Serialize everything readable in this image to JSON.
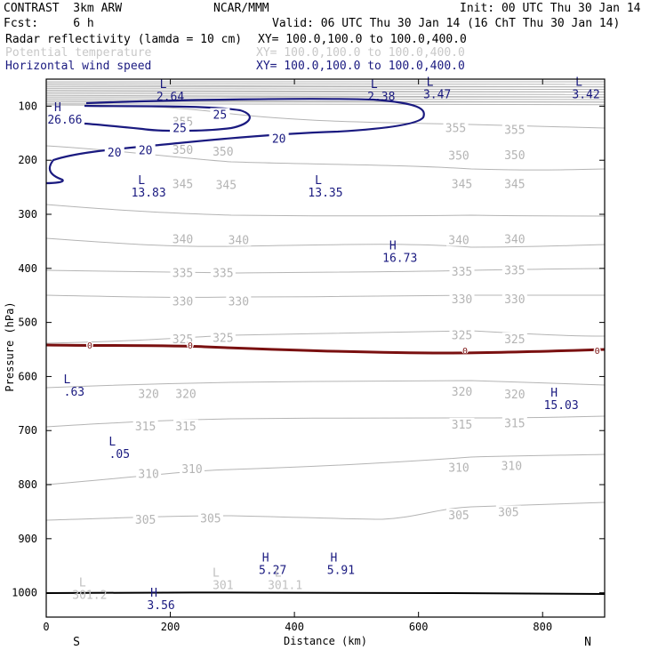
{
  "header": {
    "left1": "CONTRAST  3km ARW",
    "center1": "NCAR/MMM",
    "right1": "Init: 00 UTC Thu 30 Jan 14",
    "left2": "Fcst:     6 h",
    "right2": "Valid: 06 UTC Thu 30 Jan 14 (16 ChT Thu 30 Jan 14)"
  },
  "fields": [
    {
      "name": "Radar reflectivity (lamda = 10 cm)",
      "xy": "XY= 100.0,100.0 to 100.0,400.0",
      "color": "#000000"
    },
    {
      "name": "Potential temperature",
      "xy": "XY= 100.0,100.0 to 100.0,400.0",
      "color": "#c8c8c8"
    },
    {
      "name": "Horizontal wind speed",
      "xy": "XY= 100.0,100.0 to 100.0,400.0",
      "color": "#1a1a80"
    }
  ],
  "chart_data": {
    "type": "cross-section",
    "xlabel": "Distance (km)",
    "ylabel": "Pressure (hPa)",
    "xlim": [
      0,
      900
    ],
    "ylim": [
      1045,
      50
    ],
    "xticks": [
      0,
      200,
      400,
      600,
      800
    ],
    "yticks": [
      100,
      200,
      300,
      400,
      500,
      600,
      700,
      800,
      900,
      1000
    ],
    "x_end_labels": [
      "S",
      "N"
    ],
    "theta_labels": [
      {
        "v": "355",
        "x": 220,
        "p": 128
      },
      {
        "v": "355",
        "x": 660,
        "p": 140
      },
      {
        "v": "355",
        "x": 755,
        "p": 143
      },
      {
        "v": "350",
        "x": 220,
        "p": 180
      },
      {
        "v": "350",
        "x": 285,
        "p": 183
      },
      {
        "v": "350",
        "x": 665,
        "p": 191
      },
      {
        "v": "350",
        "x": 755,
        "p": 190
      },
      {
        "v": "345",
        "x": 220,
        "p": 243
      },
      {
        "v": "345",
        "x": 290,
        "p": 245
      },
      {
        "v": "345",
        "x": 670,
        "p": 243
      },
      {
        "v": "345",
        "x": 755,
        "p": 243
      },
      {
        "v": "340",
        "x": 220,
        "p": 345
      },
      {
        "v": "340",
        "x": 310,
        "p": 347
      },
      {
        "v": "340",
        "x": 665,
        "p": 347
      },
      {
        "v": "340",
        "x": 755,
        "p": 345
      },
      {
        "v": "335",
        "x": 220,
        "p": 408
      },
      {
        "v": "335",
        "x": 285,
        "p": 408
      },
      {
        "v": "335",
        "x": 670,
        "p": 405
      },
      {
        "v": "335",
        "x": 755,
        "p": 403
      },
      {
        "v": "330",
        "x": 220,
        "p": 460
      },
      {
        "v": "330",
        "x": 310,
        "p": 460
      },
      {
        "v": "330",
        "x": 670,
        "p": 456
      },
      {
        "v": "330",
        "x": 755,
        "p": 456
      },
      {
        "v": "325",
        "x": 220,
        "p": 530
      },
      {
        "v": "325",
        "x": 285,
        "p": 528
      },
      {
        "v": "325",
        "x": 670,
        "p": 523
      },
      {
        "v": "325",
        "x": 755,
        "p": 530
      },
      {
        "v": "320",
        "x": 165,
        "p": 631
      },
      {
        "v": "320",
        "x": 225,
        "p": 631
      },
      {
        "v": "320",
        "x": 670,
        "p": 627
      },
      {
        "v": "320",
        "x": 755,
        "p": 632
      },
      {
        "v": "315",
        "x": 160,
        "p": 691
      },
      {
        "v": "315",
        "x": 225,
        "p": 691
      },
      {
        "v": "315",
        "x": 670,
        "p": 688
      },
      {
        "v": "315",
        "x": 755,
        "p": 686
      },
      {
        "v": "310",
        "x": 165,
        "p": 779
      },
      {
        "v": "310",
        "x": 235,
        "p": 770
      },
      {
        "v": "310",
        "x": 665,
        "p": 768
      },
      {
        "v": "310",
        "x": 750,
        "p": 765
      },
      {
        "v": "305",
        "x": 160,
        "p": 864
      },
      {
        "v": "305",
        "x": 265,
        "p": 862
      },
      {
        "v": "305",
        "x": 665,
        "p": 856
      },
      {
        "v": "305",
        "x": 745,
        "p": 850
      }
    ],
    "theta_extrema": [
      {
        "type": "L",
        "value": "301.2",
        "x": 70,
        "p": 1003
      },
      {
        "type": "L",
        "value": "301",
        "x": 285,
        "p": 985
      },
      {
        "type": "L",
        "value": "301.1",
        "x": 385,
        "p": 985
      }
    ],
    "wind_contours": [
      {
        "level": "25",
        "labels": [
          {
            "x": 280,
            "p": 115
          },
          {
            "x": 215,
            "p": 140
          }
        ]
      },
      {
        "level": "20",
        "labels": [
          {
            "x": 110,
            "p": 185
          },
          {
            "x": 160,
            "p": 181
          },
          {
            "x": 375,
            "p": 159
          }
        ]
      }
    ],
    "wind_extrema": [
      {
        "type": "L",
        "value": "2.64",
        "x": 200,
        "p": 81
      },
      {
        "type": "L",
        "value": "2.38",
        "x": 540,
        "p": 81
      },
      {
        "type": "L",
        "value": "3.47",
        "x": 630,
        "p": 77
      },
      {
        "type": "L",
        "value": "3.42",
        "x": 870,
        "p": 77
      },
      {
        "type": "H",
        "value": "26.66",
        "x": 30,
        "p": 124
      },
      {
        "type": "L",
        "value": "13.83",
        "x": 165,
        "p": 259
      },
      {
        "type": "L",
        "value": "13.35",
        "x": 450,
        "p": 259
      },
      {
        "type": "H",
        "value": "16.73",
        "x": 570,
        "p": 380
      },
      {
        "type": "L",
        "value": ".63",
        "x": 45,
        "p": 627
      },
      {
        "type": "H",
        "value": "15.03",
        "x": 830,
        "p": 652
      },
      {
        "type": "L",
        "value": ".05",
        "x": 118,
        "p": 742
      },
      {
        "type": "H",
        "value": "5.27",
        "x": 365,
        "p": 957
      },
      {
        "type": "H",
        "value": "5.91",
        "x": 475,
        "p": 957
      },
      {
        "type": "H",
        "value": "3.56",
        "x": 185,
        "p": 1022
      }
    ],
    "reflectivity_label": "0",
    "reflectivity_label_x": [
      70,
      232,
      675,
      888
    ]
  }
}
